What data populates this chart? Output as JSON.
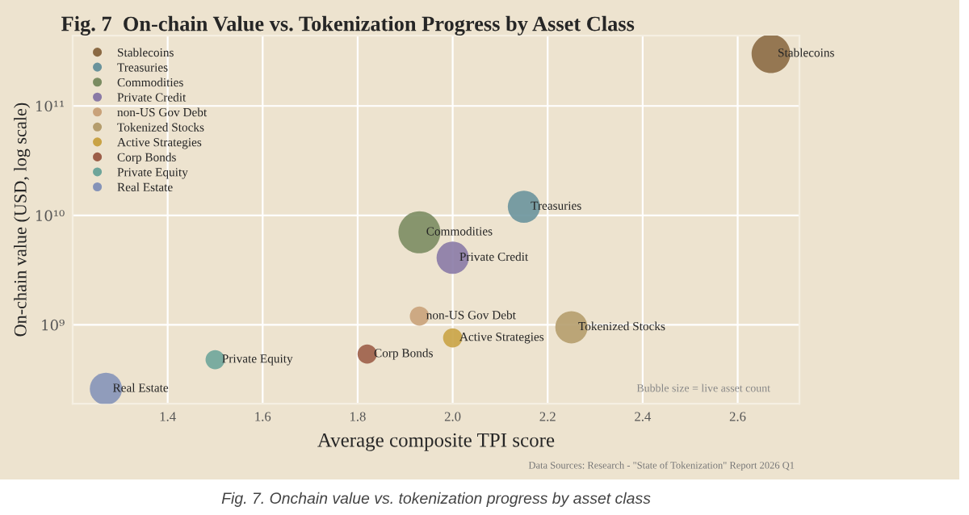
{
  "chart_data": {
    "type": "bubble",
    "title": "Fig. 7  On-chain Value vs. Tokenization Progress by Asset Class",
    "xlabel": "Average composite TPI score",
    "ylabel": "On-chain value (USD, log scale)",
    "log": "y",
    "xlim": [
      1.2,
      2.73
    ],
    "xticks": [
      {
        "value": 1.4,
        "label": "1.4"
      },
      {
        "value": 1.6,
        "label": "1.6"
      },
      {
        "value": 1.8,
        "label": "1.8"
      },
      {
        "value": 2.0,
        "label": "2.0"
      },
      {
        "value": 2.2,
        "label": "2.2"
      },
      {
        "value": 2.4,
        "label": "2.4"
      },
      {
        "value": 2.6,
        "label": "2.6"
      }
    ],
    "ylim": [
      190000000.0,
      440000000000.0
    ],
    "yticks": [
      {
        "value": 1000000000.0,
        "label": "10⁹"
      },
      {
        "value": 10000000000.0,
        "label": "10¹⁰"
      },
      {
        "value": 100000000000.0,
        "label": "10¹¹"
      }
    ],
    "grid": true,
    "legend": "top left",
    "series": [
      {
        "name": "Stablecoins",
        "color": "#8b6a44",
        "x": [
          2.67
        ],
        "values": [
          300000000000.0
        ],
        "sizes": [
          0.85
        ]
      },
      {
        "name": "Treasuries",
        "color": "#6a939c",
        "x": [
          2.15
        ],
        "values": [
          12000000000.0
        ],
        "sizes": [
          0.59
        ]
      },
      {
        "name": "Commodities",
        "color": "#7b8c62",
        "x": [
          1.93
        ],
        "values": [
          7000000000.0
        ],
        "sizes": [
          1
        ]
      },
      {
        "name": "Private Credit",
        "color": "#8a7aa6",
        "x": [
          2.0
        ],
        "values": [
          4100000000.0
        ],
        "sizes": [
          0.59
        ]
      },
      {
        "name": "non-US Gov Debt",
        "color": "#c9a27a",
        "x": [
          1.93
        ],
        "values": [
          1200000000.0
        ],
        "sizes": [
          0.21
        ]
      },
      {
        "name": "Tokenized Stocks",
        "color": "#b59d6d",
        "x": [
          2.25
        ],
        "values": [
          950000000.0
        ],
        "sizes": [
          0.59
        ]
      },
      {
        "name": "Active Strategies",
        "color": "#c9a345",
        "x": [
          2.0
        ],
        "values": [
          760000000.0
        ],
        "sizes": [
          0.21
        ]
      },
      {
        "name": "Corp Bonds",
        "color": "#9c5e48",
        "x": [
          1.82
        ],
        "values": [
          540000000.0
        ],
        "sizes": [
          0.21
        ]
      },
      {
        "name": "Private Equity",
        "color": "#6ea59a",
        "x": [
          1.5
        ],
        "values": [
          480000000.0
        ],
        "sizes": [
          0.21
        ]
      },
      {
        "name": "Real Estate",
        "color": "#8593b8",
        "x": [
          1.27
        ],
        "values": [
          260000000.0
        ],
        "sizes": [
          0.59
        ]
      }
    ],
    "annotations": [
      "Bubble size = live asset count",
      "Data Sources: Research - \"State of Tokenization\" Report 2026 Q1",
      "Fig. 7. Onchain value vs. tokenization progress by asset class"
    ]
  }
}
